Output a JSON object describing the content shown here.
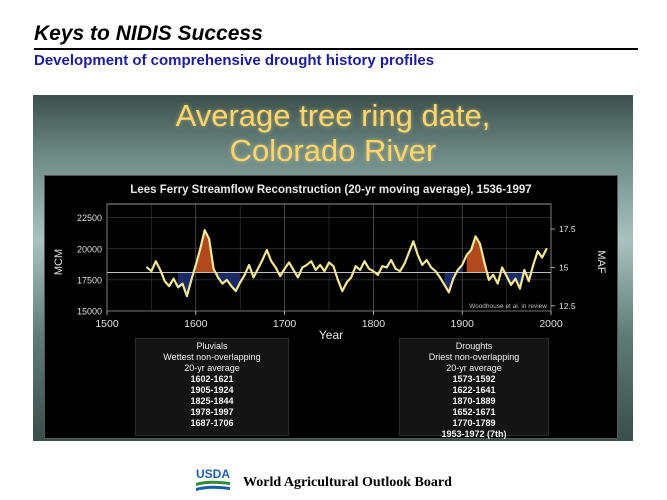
{
  "slide": {
    "title": "Keys to NIDIS Success",
    "subtitle": "Development of comprehensive drought history profiles"
  },
  "panel": {
    "title_line1": "Average tree ring date,",
    "title_line2": "Colorado River"
  },
  "chart_data": {
    "type": "line",
    "title": "Lees Ferry Streamflow Reconstruction (20-yr moving average), 1536-1997",
    "xlabel": "Year",
    "ylabel": "MCM",
    "y2label": "MAF",
    "xlim": [
      1500,
      2000
    ],
    "ylim": [
      15000,
      23600
    ],
    "xticks": [
      1500,
      1600,
      1700,
      1800,
      1900,
      2000
    ],
    "yticks": [
      15000,
      17500,
      20000,
      22500
    ],
    "y2ticks": [
      {
        "label": "12.5",
        "mcm": 15418
      },
      {
        "label": "15",
        "mcm": 18502
      },
      {
        "label": "17.5",
        "mcm": 21586
      }
    ],
    "mean": 18100,
    "grid": true,
    "annotation": "Woodhouse et al. in review",
    "series": [
      {
        "color": "#f0e79a",
        "x": [
          1545,
          1550,
          1555,
          1560,
          1565,
          1570,
          1575,
          1580,
          1585,
          1590,
          1595,
          1600,
          1605,
          1610,
          1615,
          1620,
          1625,
          1630,
          1635,
          1640,
          1645,
          1650,
          1655,
          1660,
          1665,
          1670,
          1675,
          1680,
          1685,
          1690,
          1695,
          1700,
          1705,
          1710,
          1715,
          1720,
          1725,
          1730,
          1735,
          1740,
          1745,
          1750,
          1755,
          1760,
          1765,
          1770,
          1775,
          1780,
          1785,
          1790,
          1795,
          1800,
          1805,
          1810,
          1815,
          1820,
          1825,
          1830,
          1835,
          1840,
          1845,
          1850,
          1855,
          1860,
          1865,
          1870,
          1875,
          1880,
          1885,
          1890,
          1895,
          1900,
          1905,
          1910,
          1915,
          1920,
          1925,
          1930,
          1935,
          1940,
          1945,
          1950,
          1955,
          1960,
          1965,
          1970,
          1975,
          1980,
          1985,
          1990,
          1995
        ],
        "y": [
          18500,
          18200,
          19000,
          18300,
          17400,
          17000,
          17600,
          16900,
          17200,
          16200,
          17500,
          18700,
          20000,
          21500,
          20800,
          18400,
          17700,
          17200,
          17500,
          17000,
          16600,
          17300,
          17900,
          18700,
          17700,
          18400,
          19100,
          19900,
          19000,
          18500,
          17800,
          18400,
          18900,
          18300,
          17700,
          18500,
          18700,
          19000,
          18300,
          18700,
          18200,
          18900,
          18600,
          17500,
          16600,
          17300,
          17700,
          18600,
          18300,
          19000,
          18400,
          18200,
          17900,
          18600,
          18500,
          19100,
          18400,
          18200,
          18800,
          19700,
          20600,
          19500,
          18700,
          19100,
          18500,
          18200,
          17700,
          17100,
          16500,
          17600,
          18300,
          18700,
          19500,
          19900,
          21000,
          20400,
          18900,
          17500,
          17900,
          17200,
          18500,
          17800,
          17100,
          17600,
          16800,
          18300,
          17400,
          18700,
          19800,
          19300,
          20000
        ]
      }
    ],
    "legends": {
      "pluvials": {
        "heading": "Pluvials",
        "subheading": "Wettest non-overlapping",
        "subheading2": "20-yr average",
        "items": [
          "1602-1621",
          "1905-1924",
          "1825-1844",
          "1978-1997",
          "1687-1706"
        ]
      },
      "droughts": {
        "heading": "Droughts",
        "subheading": "Driest non-overlapping",
        "subheading2": "20-yr average",
        "items": [
          "1573-1592",
          "1622-1641",
          "1870-1889",
          "1652-1671",
          "1770-1789",
          "1953-1972 (7th)"
        ]
      }
    }
  },
  "footer": {
    "logo_text": "USDA",
    "org_name": "World Agricultural Outlook Board",
    "colors": {
      "logo_blue": "#1b5ea8",
      "logo_green": "#2f8b3a"
    }
  },
  "colors": {
    "subtitle": "#1d1d99",
    "panel_title": "#ffd66e",
    "wet_fill": "#b04a1c",
    "dry_fill": "#1a2a66"
  }
}
